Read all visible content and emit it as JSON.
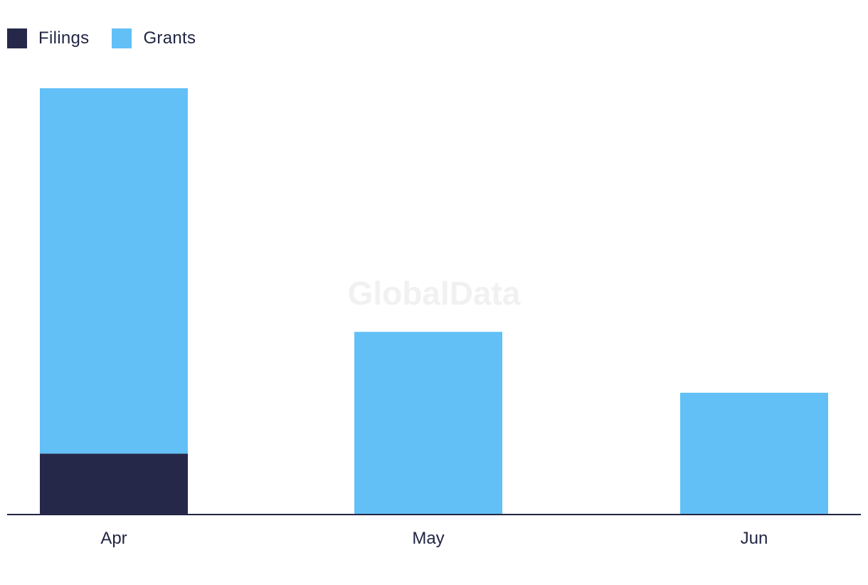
{
  "watermark": "GlobalData",
  "chart_data": {
    "type": "bar",
    "stacked": true,
    "categories": [
      "Apr",
      "May",
      "Jun"
    ],
    "series": [
      {
        "name": "Filings",
        "values": [
          1,
          0,
          0
        ],
        "color": "#26284a"
      },
      {
        "name": "Grants",
        "values": [
          6,
          3,
          2
        ],
        "color": "#62c0f7"
      }
    ],
    "ylim": [
      0,
      7
    ],
    "grid": false,
    "legend_position": "top-left",
    "xlabel": "",
    "ylabel": ""
  }
}
